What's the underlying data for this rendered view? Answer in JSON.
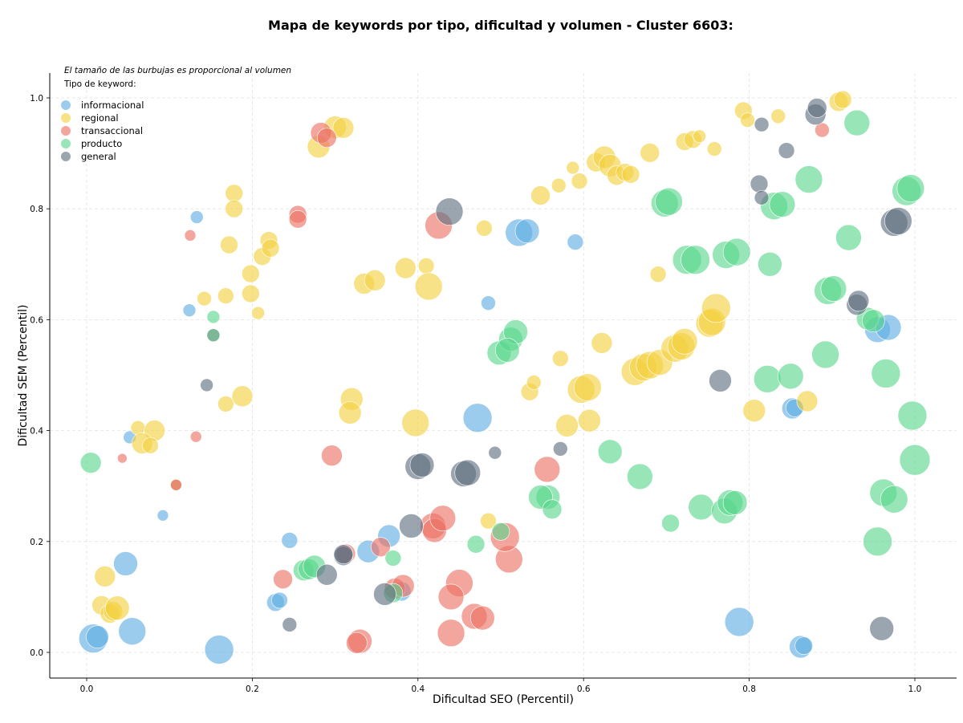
{
  "chart_data": {
    "type": "scatter",
    "title": "Mapa de keywords por tipo, dificultad y volumen - Cluster 6603:",
    "xlabel": "Dificultad SEO (Percentil)",
    "ylabel": "Dificultad SEM (Percentil)",
    "note": "El tamaño de las burbujas es proporcional al volumen",
    "legend_title": "Tipo de keyword:",
    "legend_position": "top-left",
    "xlim": [
      -0.045,
      1.045
    ],
    "ylim": [
      -0.045,
      1.045
    ],
    "xticks": [
      "0.0",
      "0.2",
      "0.4",
      "0.6",
      "0.8",
      "1.0"
    ],
    "yticks": [
      "0.0",
      "0.2",
      "0.4",
      "0.6",
      "0.8",
      "1.0"
    ],
    "grid": true,
    "series": [
      {
        "name": "informacional",
        "color": "#5DADE2",
        "points": [
          [
            0.133,
            0.785,
            8
          ],
          [
            0.124,
            0.617,
            8
          ],
          [
            0.052,
            0.388,
            8
          ],
          [
            0.092,
            0.247,
            7
          ],
          [
            0.245,
            0.202,
            10
          ],
          [
            0.047,
            0.16,
            15
          ],
          [
            0.008,
            0.025,
            18
          ],
          [
            0.013,
            0.028,
            14
          ],
          [
            0.055,
            0.038,
            17
          ],
          [
            0.16,
            0.005,
            18
          ],
          [
            0.228,
            0.09,
            11
          ],
          [
            0.233,
            0.094,
            10
          ],
          [
            0.34,
            0.182,
            14
          ],
          [
            0.365,
            0.21,
            14
          ],
          [
            0.38,
            0.11,
            12
          ],
          [
            0.472,
            0.423,
            18
          ],
          [
            0.522,
            0.757,
            17
          ],
          [
            0.532,
            0.76,
            15
          ],
          [
            0.59,
            0.74,
            10
          ],
          [
            0.485,
            0.63,
            9
          ],
          [
            0.852,
            0.44,
            13
          ],
          [
            0.855,
            0.441,
            11
          ],
          [
            0.862,
            0.01,
            14
          ],
          [
            0.866,
            0.012,
            11
          ],
          [
            0.788,
            0.055,
            18
          ],
          [
            0.955,
            0.582,
            16
          ],
          [
            0.968,
            0.586,
            16
          ]
        ]
      },
      {
        "name": "regional",
        "color": "#F4D03F",
        "points": [
          [
            0.178,
            0.828,
            11
          ],
          [
            0.178,
            0.8,
            11
          ],
          [
            0.172,
            0.735,
            11
          ],
          [
            0.22,
            0.743,
            11
          ],
          [
            0.212,
            0.714,
            11
          ],
          [
            0.222,
            0.729,
            11
          ],
          [
            0.198,
            0.683,
            11
          ],
          [
            0.198,
            0.647,
            11
          ],
          [
            0.168,
            0.643,
            10
          ],
          [
            0.142,
            0.638,
            9
          ],
          [
            0.207,
            0.612,
            8
          ],
          [
            0.188,
            0.462,
            13
          ],
          [
            0.168,
            0.448,
            10
          ],
          [
            0.062,
            0.405,
            9
          ],
          [
            0.082,
            0.4,
            13
          ],
          [
            0.067,
            0.377,
            13
          ],
          [
            0.077,
            0.373,
            10
          ],
          [
            0.022,
            0.137,
            13
          ],
          [
            0.018,
            0.085,
            12
          ],
          [
            0.028,
            0.07,
            12
          ],
          [
            0.032,
            0.074,
            12
          ],
          [
            0.037,
            0.08,
            15
          ],
          [
            0.28,
            0.912,
            14
          ],
          [
            0.3,
            0.947,
            14
          ],
          [
            0.31,
            0.946,
            13
          ],
          [
            0.335,
            0.665,
            13
          ],
          [
            0.348,
            0.671,
            13
          ],
          [
            0.32,
            0.457,
            14
          ],
          [
            0.318,
            0.432,
            14
          ],
          [
            0.397,
            0.414,
            17
          ],
          [
            0.385,
            0.693,
            13
          ],
          [
            0.41,
            0.697,
            10
          ],
          [
            0.413,
            0.66,
            17
          ],
          [
            0.48,
            0.765,
            10
          ],
          [
            0.485,
            0.237,
            10
          ],
          [
            0.535,
            0.47,
            11
          ],
          [
            0.54,
            0.487,
            9
          ],
          [
            0.548,
            0.824,
            12
          ],
          [
            0.57,
            0.842,
            9
          ],
          [
            0.572,
            0.53,
            10
          ],
          [
            0.587,
            0.874,
            8
          ],
          [
            0.595,
            0.85,
            10
          ],
          [
            0.58,
            0.409,
            14
          ],
          [
            0.597,
            0.474,
            17
          ],
          [
            0.605,
            0.478,
            17
          ],
          [
            0.607,
            0.418,
            14
          ],
          [
            0.622,
            0.558,
            13
          ],
          [
            0.615,
            0.884,
            12
          ],
          [
            0.625,
            0.893,
            14
          ],
          [
            0.632,
            0.878,
            14
          ],
          [
            0.64,
            0.86,
            12
          ],
          [
            0.65,
            0.866,
            11
          ],
          [
            0.657,
            0.862,
            11
          ],
          [
            0.68,
            0.901,
            12
          ],
          [
            0.662,
            0.506,
            17
          ],
          [
            0.672,
            0.514,
            17
          ],
          [
            0.68,
            0.518,
            17
          ],
          [
            0.692,
            0.523,
            16
          ],
          [
            0.69,
            0.682,
            10
          ],
          [
            0.71,
            0.548,
            17
          ],
          [
            0.718,
            0.552,
            17
          ],
          [
            0.722,
            0.561,
            16
          ],
          [
            0.722,
            0.921,
            11
          ],
          [
            0.732,
            0.925,
            11
          ],
          [
            0.74,
            0.931,
            8
          ],
          [
            0.752,
            0.593,
            17
          ],
          [
            0.755,
            0.596,
            17
          ],
          [
            0.76,
            0.621,
            18
          ],
          [
            0.758,
            0.908,
            9
          ],
          [
            0.793,
            0.977,
            11
          ],
          [
            0.798,
            0.96,
            9
          ],
          [
            0.835,
            0.967,
            9
          ],
          [
            0.806,
            0.436,
            14
          ],
          [
            0.87,
            0.453,
            13
          ],
          [
            0.908,
            0.993,
            12
          ],
          [
            0.913,
            0.997,
            11
          ]
        ]
      },
      {
        "name": "transaccional",
        "color": "#EC7063",
        "points": [
          [
            0.125,
            0.752,
            7
          ],
          [
            0.132,
            0.389,
            7
          ],
          [
            0.043,
            0.35,
            6
          ],
          [
            0.255,
            0.79,
            11
          ],
          [
            0.255,
            0.781,
            11
          ],
          [
            0.283,
            0.937,
            13
          ],
          [
            0.29,
            0.928,
            12
          ],
          [
            0.296,
            0.355,
            13
          ],
          [
            0.313,
            0.178,
            12
          ],
          [
            0.237,
            0.132,
            12
          ],
          [
            0.33,
            0.02,
            15
          ],
          [
            0.326,
            0.017,
            13
          ],
          [
            0.355,
            0.19,
            12
          ],
          [
            0.372,
            0.115,
            13
          ],
          [
            0.382,
            0.12,
            14
          ],
          [
            0.425,
            0.77,
            17
          ],
          [
            0.418,
            0.228,
            16
          ],
          [
            0.42,
            0.22,
            15
          ],
          [
            0.43,
            0.242,
            16
          ],
          [
            0.45,
            0.125,
            17
          ],
          [
            0.44,
            0.1,
            16
          ],
          [
            0.44,
            0.035,
            17
          ],
          [
            0.468,
            0.065,
            16
          ],
          [
            0.478,
            0.062,
            15
          ],
          [
            0.51,
            0.168,
            17
          ],
          [
            0.505,
            0.208,
            18
          ],
          [
            0.556,
            0.33,
            16
          ],
          [
            0.888,
            0.942,
            9
          ]
        ]
      },
      {
        "name": "transaccional-dark",
        "color": "#D84315",
        "legend": false,
        "points": [
          [
            0.108,
            0.302,
            7
          ]
        ]
      },
      {
        "name": "producto",
        "color": "#58D68D",
        "points": [
          [
            0.005,
            0.342,
            13
          ],
          [
            0.153,
            0.605,
            8
          ],
          [
            0.262,
            0.148,
            13
          ],
          [
            0.268,
            0.15,
            13
          ],
          [
            0.275,
            0.155,
            14
          ],
          [
            0.37,
            0.17,
            10
          ],
          [
            0.37,
            0.107,
            12
          ],
          [
            0.47,
            0.195,
            11
          ],
          [
            0.5,
            0.218,
            11
          ],
          [
            0.498,
            0.54,
            15
          ],
          [
            0.512,
            0.565,
            15
          ],
          [
            0.518,
            0.578,
            15
          ],
          [
            0.508,
            0.545,
            15
          ],
          [
            0.557,
            0.28,
            15
          ],
          [
            0.548,
            0.28,
            15
          ],
          [
            0.562,
            0.258,
            12
          ],
          [
            0.632,
            0.362,
            15
          ],
          [
            0.668,
            0.317,
            16
          ],
          [
            0.705,
            0.233,
            11
          ],
          [
            0.698,
            0.81,
            17
          ],
          [
            0.703,
            0.813,
            17
          ],
          [
            0.725,
            0.708,
            18
          ],
          [
            0.735,
            0.708,
            18
          ],
          [
            0.742,
            0.262,
            16
          ],
          [
            0.772,
            0.717,
            17
          ],
          [
            0.785,
            0.722,
            17
          ],
          [
            0.77,
            0.255,
            16
          ],
          [
            0.777,
            0.27,
            16
          ],
          [
            0.783,
            0.27,
            15
          ],
          [
            0.825,
            0.7,
            15
          ],
          [
            0.822,
            0.493,
            17
          ],
          [
            0.83,
            0.805,
            17
          ],
          [
            0.84,
            0.808,
            16
          ],
          [
            0.85,
            0.498,
            16
          ],
          [
            0.872,
            0.853,
            17
          ],
          [
            0.895,
            0.652,
            17
          ],
          [
            0.902,
            0.656,
            16
          ],
          [
            0.892,
            0.537,
            17
          ],
          [
            0.92,
            0.748,
            16
          ],
          [
            0.93,
            0.955,
            16
          ],
          [
            0.943,
            0.602,
            14
          ],
          [
            0.95,
            0.598,
            14
          ],
          [
            0.955,
            0.2,
            18
          ],
          [
            0.962,
            0.288,
            17
          ],
          [
            0.965,
            0.503,
            18
          ],
          [
            0.975,
            0.276,
            17
          ],
          [
            0.99,
            0.832,
            18
          ],
          [
            0.995,
            0.837,
            17
          ],
          [
            0.997,
            0.427,
            18
          ],
          [
            1.0,
            0.347,
            19
          ]
        ]
      },
      {
        "name": "producto-dark",
        "color": "#2E8B57",
        "legend": false,
        "points": [
          [
            0.153,
            0.572,
            8
          ]
        ]
      },
      {
        "name": "general",
        "color": "#5D6D7E",
        "points": [
          [
            0.145,
            0.482,
            8
          ],
          [
            0.245,
            0.05,
            9
          ],
          [
            0.29,
            0.14,
            13
          ],
          [
            0.31,
            0.174,
            12
          ],
          [
            0.31,
            0.177,
            12
          ],
          [
            0.36,
            0.105,
            14
          ],
          [
            0.392,
            0.228,
            15
          ],
          [
            0.4,
            0.335,
            16
          ],
          [
            0.405,
            0.338,
            15
          ],
          [
            0.455,
            0.322,
            16
          ],
          [
            0.46,
            0.324,
            16
          ],
          [
            0.438,
            0.795,
            17
          ],
          [
            0.493,
            0.36,
            8
          ],
          [
            0.572,
            0.367,
            9
          ],
          [
            0.765,
            0.49,
            14
          ],
          [
            0.815,
            0.952,
            9
          ],
          [
            0.812,
            0.845,
            11
          ],
          [
            0.815,
            0.82,
            9
          ],
          [
            0.845,
            0.905,
            10
          ],
          [
            0.88,
            0.97,
            13
          ],
          [
            0.882,
            0.982,
            12
          ],
          [
            0.93,
            0.627,
            13
          ],
          [
            0.932,
            0.634,
            13
          ],
          [
            0.975,
            0.775,
            17
          ],
          [
            0.98,
            0.778,
            17
          ],
          [
            0.96,
            0.043,
            15
          ]
        ]
      }
    ]
  }
}
